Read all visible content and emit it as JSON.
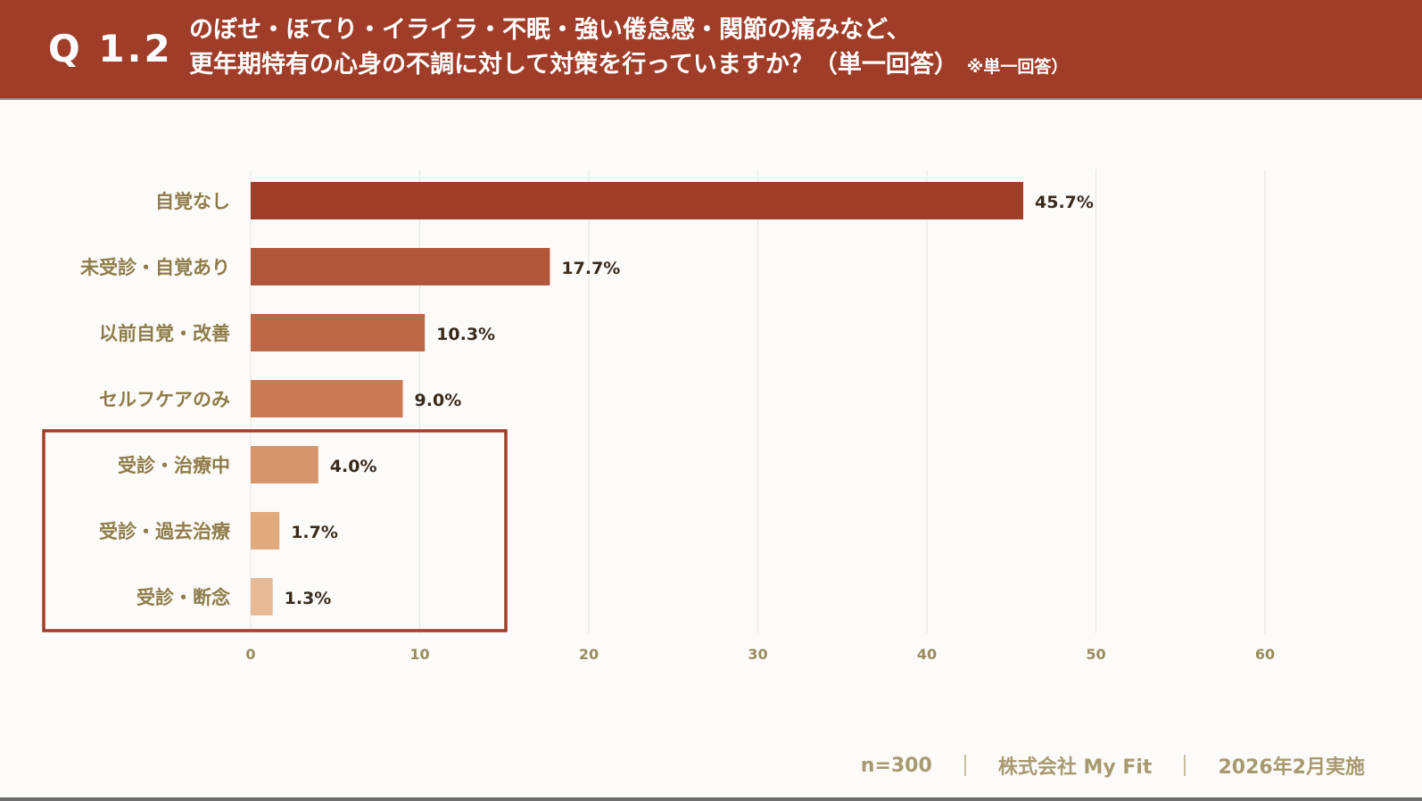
{
  "header": {
    "question_number": "Q 1.2",
    "title_line1": "のぼせ・ほてり・イライラ・不眠・強い倦怠感・関節の痛みなど、",
    "title_line2": "更年期特有の心身の不調に対して対策を行っていますか？（単一回答）",
    "note": "※単一回答）"
  },
  "colors": {
    "header_bg": "#a03d29",
    "bar_colors": [
      "#a03d29",
      "#b2563b",
      "#be6848",
      "#c97b55",
      "#d6956a",
      "#e0aa7d",
      "#e6b997"
    ],
    "highlight_border": "#a03d29"
  },
  "chart_data": {
    "type": "bar",
    "orientation": "horizontal",
    "categories": [
      "自覚なし",
      "未受診・自覚あり",
      "以前自覚・改善",
      "セルフケアのみ",
      "受診・治療中",
      "受診・過去治療",
      "受診・断念"
    ],
    "values": [
      45.7,
      17.7,
      10.3,
      9.0,
      4.0,
      1.7,
      1.3
    ],
    "value_labels": [
      "45.7%",
      "17.7%",
      "10.3%",
      "9.0%",
      "4.0%",
      "1.7%",
      "1.3%"
    ],
    "x_ticks": [
      0,
      10,
      20,
      30,
      40,
      50,
      60
    ],
    "xlim": [
      0,
      60
    ],
    "grid": true,
    "highlighted_categories": [
      "受診・治療中",
      "受診・過去治療",
      "受診・断念"
    ]
  },
  "footer": {
    "sample": "n=300",
    "company": "株式会社 My Fit",
    "date": "2026年2月実施"
  }
}
